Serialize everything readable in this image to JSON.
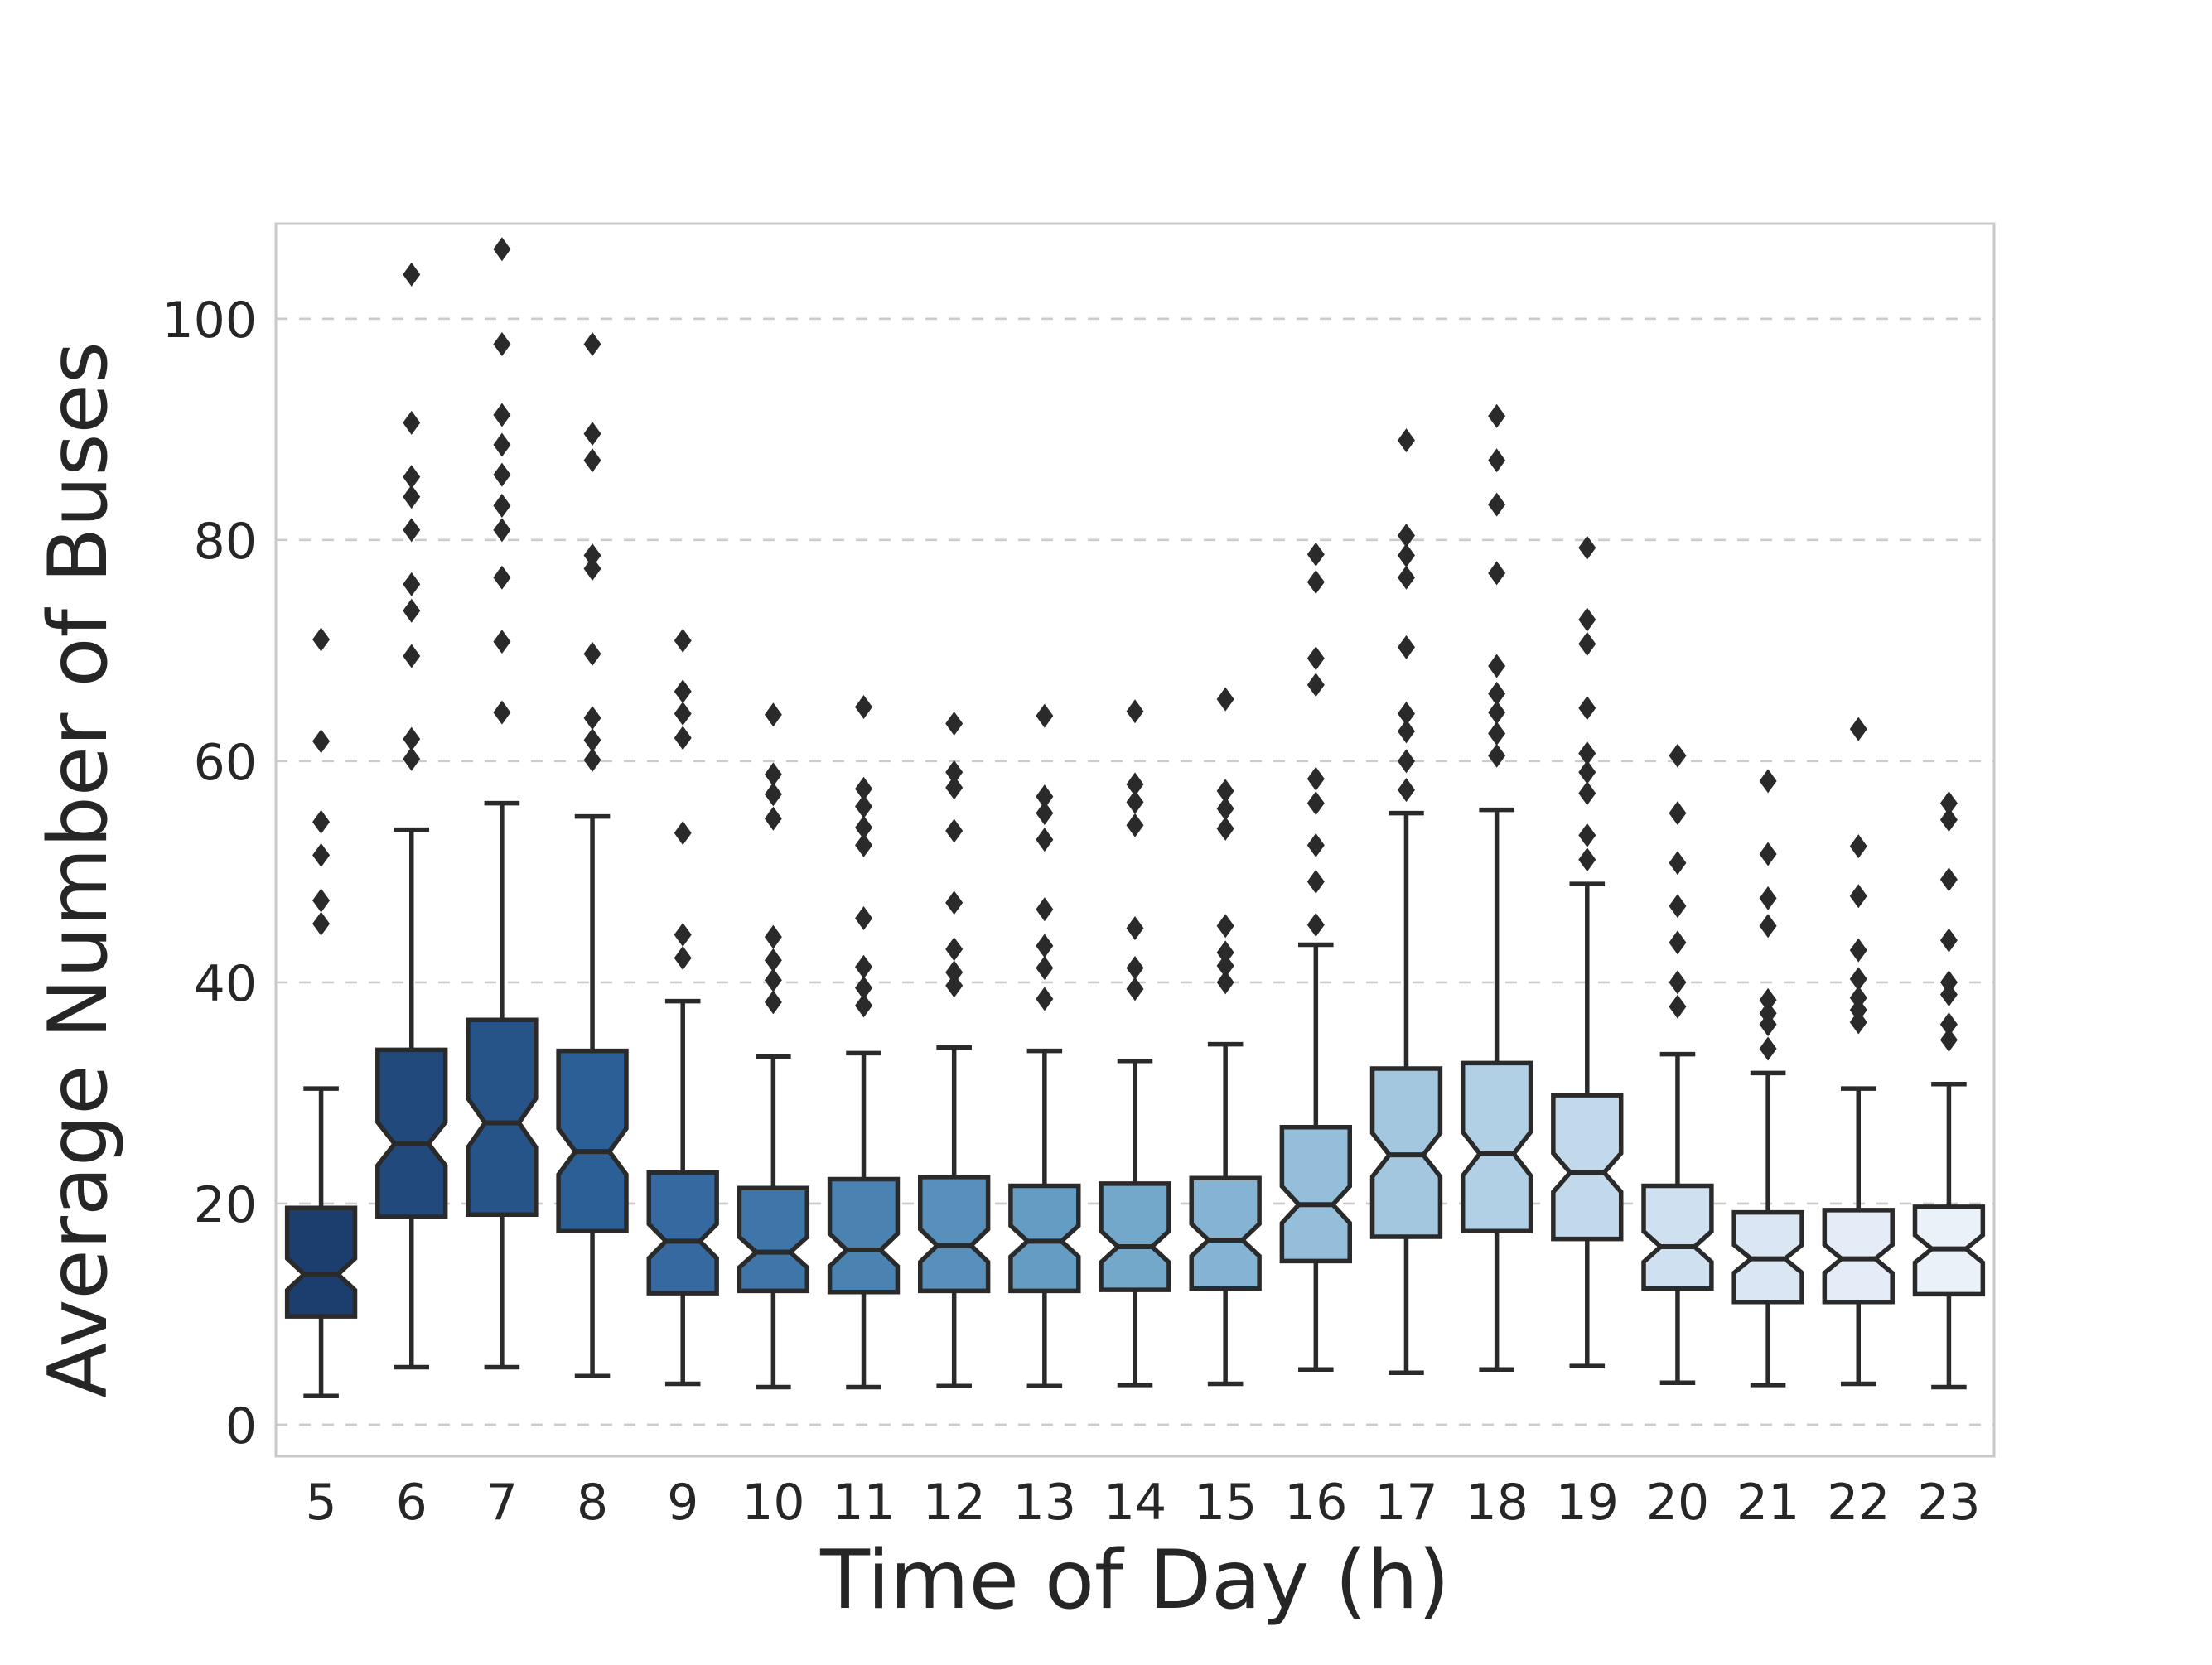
{
  "chart_data": {
    "type": "box",
    "title": "",
    "xlabel": "Time of Day (h)",
    "ylabel": "Average Number of Buses",
    "categories": [
      "5",
      "6",
      "7",
      "8",
      "9",
      "10",
      "11",
      "12",
      "13",
      "14",
      "15",
      "16",
      "17",
      "18",
      "19",
      "20",
      "21",
      "22",
      "23"
    ],
    "yticks": [
      0,
      20,
      40,
      60,
      80,
      100
    ],
    "ylim": [
      -2.85,
      108.6
    ],
    "grid": "horizontal-dashed",
    "legend": "none",
    "notched": true,
    "marker": "diamond",
    "style": {
      "grid_color": "#cccccc",
      "spine_color": "#c9c9c9",
      "text_color": "#262626",
      "box_edge_color": "#2a2a2a",
      "flier_color": "#2a2a2a",
      "background": "#ffffff"
    },
    "palette": [
      "#1c3e6e",
      "#21497b",
      "#265489",
      "#2c5f96",
      "#35699f",
      "#3f76aa",
      "#4a82b2",
      "#5890bb",
      "#659cc3",
      "#74a8cb",
      "#84b3d3",
      "#94bed9",
      "#a3c7df",
      "#b2d0e5",
      "#c1d9eb",
      "#cfe0f0",
      "#dae6f4",
      "#e3ecf7",
      "#ebf1f9"
    ],
    "series": [
      {
        "hour": "5",
        "whislo": 2.6,
        "q1": 9.8,
        "med": 13.6,
        "q3": 19.6,
        "whishi": 30.4,
        "fliers": [
          71.0,
          61.8,
          54.5,
          51.5,
          47.4,
          45.3
        ]
      },
      {
        "hour": "6",
        "whislo": 5.2,
        "q1": 18.8,
        "med": 25.4,
        "q3": 33.9,
        "whishi": 53.8,
        "fliers": [
          104.0,
          90.6,
          85.7,
          83.9,
          80.9,
          76.0,
          73.6,
          69.5,
          62.0,
          60.2
        ]
      },
      {
        "hour": "7",
        "whislo": 5.2,
        "q1": 19.0,
        "med": 27.3,
        "q3": 36.6,
        "whishi": 56.2,
        "fliers": [
          106.3,
          97.7,
          91.3,
          88.6,
          85.9,
          83.1,
          80.9,
          76.6,
          70.8,
          64.4
        ]
      },
      {
        "hour": "8",
        "whislo": 4.4,
        "q1": 17.5,
        "med": 24.7,
        "q3": 33.8,
        "whishi": 55.0,
        "fliers": [
          97.7,
          89.6,
          87.2,
          78.6,
          77.4,
          69.7,
          63.9,
          61.9,
          60.1
        ]
      },
      {
        "hour": "9",
        "whislo": 3.7,
        "q1": 11.9,
        "med": 16.6,
        "q3": 22.8,
        "whishi": 38.3,
        "fliers": [
          70.9,
          66.3,
          64.3,
          62.1,
          53.5,
          44.3,
          42.2
        ]
      },
      {
        "hour": "10",
        "whislo": 3.4,
        "q1": 12.1,
        "med": 15.6,
        "q3": 21.4,
        "whishi": 33.3,
        "fliers": [
          64.2,
          58.8,
          57.0,
          54.8,
          44.1,
          42.0,
          40.2,
          38.2
        ]
      },
      {
        "hour": "11",
        "whislo": 3.4,
        "q1": 12.0,
        "med": 15.8,
        "q3": 22.2,
        "whishi": 33.6,
        "fliers": [
          64.9,
          57.5,
          55.9,
          54.0,
          52.4,
          45.8,
          41.4,
          39.5,
          37.9
        ]
      },
      {
        "hour": "12",
        "whislo": 3.5,
        "q1": 12.1,
        "med": 16.2,
        "q3": 22.4,
        "whishi": 34.1,
        "fliers": [
          63.4,
          59.0,
          57.6,
          53.7,
          47.2,
          43.0,
          40.9,
          39.7
        ]
      },
      {
        "hour": "13",
        "whislo": 3.5,
        "q1": 12.1,
        "med": 16.6,
        "q3": 21.6,
        "whishi": 33.8,
        "fliers": [
          64.1,
          56.8,
          55.3,
          52.9,
          46.6,
          43.3,
          41.3,
          38.5
        ]
      },
      {
        "hour": "14",
        "whislo": 3.6,
        "q1": 12.2,
        "med": 16.1,
        "q3": 21.8,
        "whishi": 32.9,
        "fliers": [
          64.5,
          57.9,
          56.3,
          54.2,
          44.9,
          41.3,
          39.4
        ]
      },
      {
        "hour": "15",
        "whislo": 3.7,
        "q1": 12.3,
        "med": 16.7,
        "q3": 22.3,
        "whishi": 34.4,
        "fliers": [
          65.6,
          57.3,
          55.7,
          53.9,
          45.1,
          42.7,
          41.5,
          40.0
        ]
      },
      {
        "hour": "16",
        "whislo": 5.0,
        "q1": 14.8,
        "med": 19.9,
        "q3": 26.9,
        "whishi": 43.4,
        "fliers": [
          78.7,
          76.2,
          69.3,
          66.9,
          58.4,
          56.2,
          52.4,
          49.1,
          45.2
        ]
      },
      {
        "hour": "17",
        "whislo": 4.7,
        "q1": 17.0,
        "med": 24.4,
        "q3": 32.2,
        "whishi": 55.3,
        "fliers": [
          89.0,
          80.4,
          78.6,
          76.6,
          70.3,
          64.3,
          62.7,
          60.0,
          57.4
        ]
      },
      {
        "hour": "18",
        "whislo": 5.0,
        "q1": 17.5,
        "med": 24.5,
        "q3": 32.7,
        "whishi": 55.6,
        "fliers": [
          91.2,
          87.2,
          83.2,
          77.0,
          68.6,
          66.1,
          64.4,
          62.5,
          60.5
        ]
      },
      {
        "hour": "19",
        "whislo": 5.3,
        "q1": 16.8,
        "med": 22.8,
        "q3": 29.8,
        "whishi": 48.9,
        "fliers": [
          79.3,
          72.8,
          70.6,
          64.8,
          60.7,
          59.0,
          57.1,
          53.3,
          51.1
        ]
      },
      {
        "hour": "20",
        "whislo": 3.8,
        "q1": 12.3,
        "med": 16.1,
        "q3": 21.6,
        "whishi": 33.5,
        "fliers": [
          60.5,
          55.3,
          50.8,
          46.9,
          43.6,
          40.0,
          37.8
        ]
      },
      {
        "hour": "21",
        "whislo": 3.6,
        "q1": 11.1,
        "med": 15.0,
        "q3": 19.2,
        "whishi": 31.8,
        "fliers": [
          58.2,
          51.6,
          47.6,
          45.1,
          38.4,
          37.2,
          36.2,
          34.0
        ]
      },
      {
        "hour": "22",
        "whislo": 3.7,
        "q1": 11.1,
        "med": 15.0,
        "q3": 19.4,
        "whishi": 30.4,
        "fliers": [
          62.9,
          52.3,
          47.8,
          42.9,
          40.3,
          38.6,
          37.5,
          36.4
        ]
      },
      {
        "hour": "23",
        "whislo": 3.4,
        "q1": 11.8,
        "med": 15.9,
        "q3": 19.7,
        "whishi": 30.8,
        "fliers": [
          56.2,
          54.7,
          49.3,
          43.8,
          40.0,
          38.9,
          36.2,
          34.8
        ]
      }
    ]
  }
}
